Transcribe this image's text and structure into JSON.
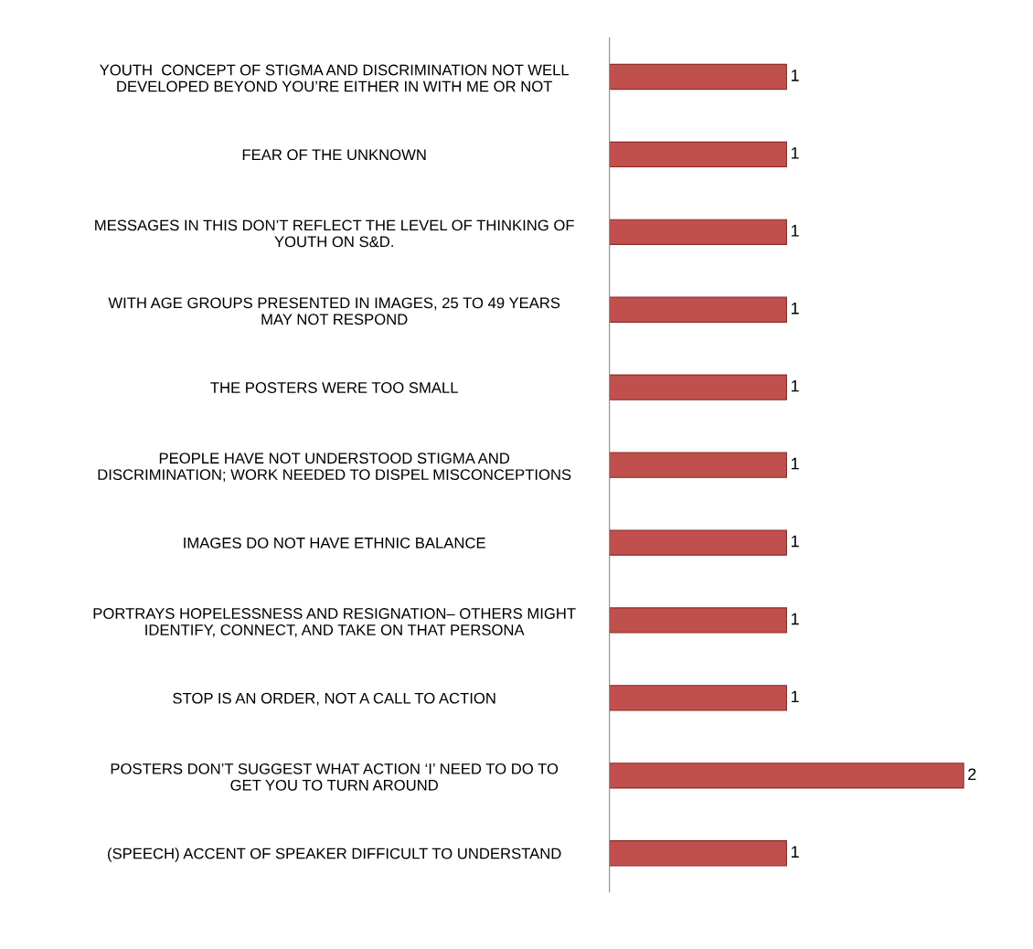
{
  "chart_data": {
    "type": "bar",
    "orientation": "horizontal",
    "categories": [
      "YOUTH  CONCEPT OF STIGMA AND DISCRIMINATION NOT WELL\nDEVELOPED BEYOND YOU’RE EITHER IN WITH ME OR NOT",
      "FEAR OF THE UNKNOWN",
      "MESSAGES IN THIS DON’T REFLECT THE LEVEL OF THINKING OF\nYOUTH ON S&D.",
      "WITH AGE GROUPS PRESENTED IN IMAGES, 25 TO 49 YEARS\nMAY NOT RESPOND",
      "THE POSTERS WERE TOO SMALL",
      "PEOPLE HAVE NOT UNDERSTOOD STIGMA AND\nDISCRIMINATION; WORK NEEDED TO DISPEL MISCONCEPTIONS",
      "IMAGES DO NOT HAVE ETHNIC BALANCE",
      "PORTRAYS HOPELESSNESS AND RESIGNATION– OTHERS MIGHT\nIDENTIFY, CONNECT, AND TAKE ON THAT PERSONA",
      "STOP IS AN ORDER, NOT A CALL TO ACTION",
      "POSTERS DON’T SUGGEST WHAT ACTION ‘I’ NEED TO DO TO\nGET YOU TO TURN AROUND",
      "(SPEECH) ACCENT OF SPEAKER DIFFICULT TO UNDERSTAND"
    ],
    "values": [
      1,
      1,
      1,
      1,
      1,
      1,
      1,
      1,
      1,
      2,
      1
    ],
    "color": "#c0504d",
    "tick_labels": "y",
    "data_labels": true,
    "grid": false,
    "legend": false
  }
}
